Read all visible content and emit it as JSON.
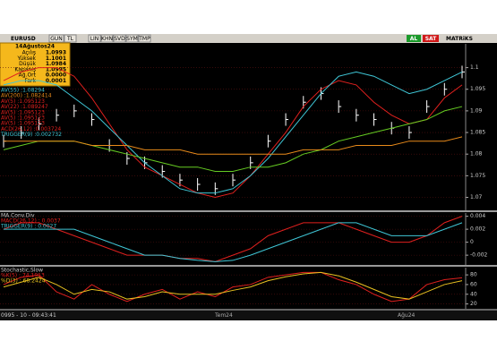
{
  "toolbar": {
    "symbol": "EURUSD",
    "buttons": [
      "GUN",
      "TL",
      "LIN",
      "KHN",
      "SVD",
      "SYM",
      "TMP"
    ],
    "buy": "AL",
    "sell": "SAT",
    "brand": "MATRiKS"
  },
  "info_box": {
    "date": "14Ağustos24",
    "rows": [
      [
        "Açılış",
        "1.0993"
      ],
      [
        "Yüksek",
        "1.1001"
      ],
      [
        "Düşük",
        "1.0984"
      ],
      [
        "Kapanış",
        "1.0995"
      ],
      [
        "Ağ.Ort",
        "0.0000"
      ],
      [
        "Fark",
        "0.0001"
      ]
    ]
  },
  "main": {
    "legend": [
      "AV(55) :1.08294",
      "AV(200) :1.082414",
      "AV(5) :1.095123",
      "AV(22) :1.089247",
      "AV(5) :1.095123",
      "AV(5) :1.095123",
      "AV(5) :1.095123",
      "ACD(26,12) :0.003724",
      "TRIGGER(9) :0.002732"
    ],
    "ylim": [
      1.067,
      1.1055
    ],
    "yticks": [
      1.07,
      1.075,
      1.08,
      1.085,
      1.09,
      1.095,
      1.1
    ],
    "price": {
      "color": "#ffffff",
      "values": [
        1.083,
        1.085,
        1.087,
        1.089,
        1.09,
        1.088,
        1.082,
        1.079,
        1.078,
        1.076,
        1.074,
        1.073,
        1.072,
        1.074,
        1.078,
        1.083,
        1.088,
        1.092,
        1.094,
        1.091,
        1.089,
        1.088,
        1.086,
        1.085,
        1.091,
        1.095,
        1.099
      ]
    },
    "series": [
      {
        "color": "#e0201e",
        "values": [
          1.097,
          1.099,
          1.1,
          1.1,
          1.098,
          1.093,
          1.087,
          1.081,
          1.077,
          1.075,
          1.073,
          1.071,
          1.07,
          1.071,
          1.075,
          1.08,
          1.085,
          1.091,
          1.095,
          1.097,
          1.096,
          1.092,
          1.089,
          1.087,
          1.088,
          1.093,
          1.096
        ]
      },
      {
        "color": "#3fc6d6",
        "values": [
          1.096,
          1.097,
          1.097,
          1.096,
          1.093,
          1.09,
          1.086,
          1.082,
          1.078,
          1.075,
          1.072,
          1.071,
          1.071,
          1.072,
          1.075,
          1.079,
          1.084,
          1.089,
          1.094,
          1.098,
          1.099,
          1.098,
          1.096,
          1.094,
          1.095,
          1.097,
          1.099
        ]
      },
      {
        "color": "#66cc22",
        "values": [
          1.081,
          1.082,
          1.083,
          1.083,
          1.083,
          1.082,
          1.081,
          1.08,
          1.079,
          1.078,
          1.077,
          1.077,
          1.076,
          1.076,
          1.077,
          1.077,
          1.078,
          1.08,
          1.081,
          1.083,
          1.084,
          1.085,
          1.086,
          1.087,
          1.088,
          1.09,
          1.091
        ]
      },
      {
        "color": "#e88a1a",
        "values": [
          1.083,
          1.083,
          1.083,
          1.083,
          1.083,
          1.082,
          1.082,
          1.082,
          1.081,
          1.081,
          1.081,
          1.08,
          1.08,
          1.08,
          1.08,
          1.08,
          1.08,
          1.081,
          1.081,
          1.081,
          1.082,
          1.082,
          1.082,
          1.083,
          1.083,
          1.083,
          1.084
        ]
      }
    ]
  },
  "macd": {
    "title": "MA.Conv.Div",
    "legend": [
      "MACD(26,12) : 0.0037",
      "TRIGGER(9) : 0.0027"
    ],
    "ylim": [
      -0.0035,
      0.0045
    ],
    "yticks": [
      -0.002,
      0,
      0.002,
      0.004
    ],
    "series": [
      {
        "color": "#e0201e",
        "values": [
          0.002,
          0.003,
          0.003,
          0.002,
          0.001,
          0,
          -0.001,
          -0.002,
          -0.002,
          -0.002,
          -0.0025,
          -0.0025,
          -0.003,
          -0.002,
          -0.001,
          0.001,
          0.002,
          0.003,
          0.003,
          0.003,
          0.002,
          0.001,
          0,
          0,
          0.001,
          0.003,
          0.004
        ]
      },
      {
        "color": "#3fc6d6",
        "values": [
          0.002,
          0.002,
          0.002,
          0.002,
          0.002,
          0.001,
          0,
          -0.001,
          -0.002,
          -0.002,
          -0.0025,
          -0.0028,
          -0.003,
          -0.0028,
          -0.002,
          -0.001,
          0,
          0.001,
          0.002,
          0.003,
          0.003,
          0.002,
          0.001,
          0.001,
          0.001,
          0.002,
          0.003
        ]
      }
    ]
  },
  "stoch": {
    "title": "Stochastic,Slow",
    "legend": [
      "%K(5) : 74.1913",
      "%D(3) : 68.2424"
    ],
    "ylim": [
      10,
      95
    ],
    "yticks": [
      20,
      40,
      60,
      80
    ],
    "series": [
      {
        "color": "#e0201e",
        "values": [
          60,
          75,
          80,
          45,
          30,
          60,
          40,
          25,
          40,
          50,
          30,
          45,
          35,
          55,
          60,
          75,
          80,
          85,
          85,
          70,
          60,
          40,
          25,
          30,
          60,
          70,
          74
        ]
      },
      {
        "color": "#e8c020",
        "values": [
          55,
          65,
          75,
          60,
          40,
          50,
          45,
          30,
          35,
          45,
          40,
          40,
          40,
          48,
          55,
          68,
          76,
          82,
          85,
          78,
          65,
          50,
          35,
          30,
          45,
          60,
          68
        ]
      }
    ]
  },
  "timebar": {
    "clock": "0995 - 10 - 09:43:41",
    "dates": [
      "Tem24",
      "Ağu24"
    ]
  }
}
